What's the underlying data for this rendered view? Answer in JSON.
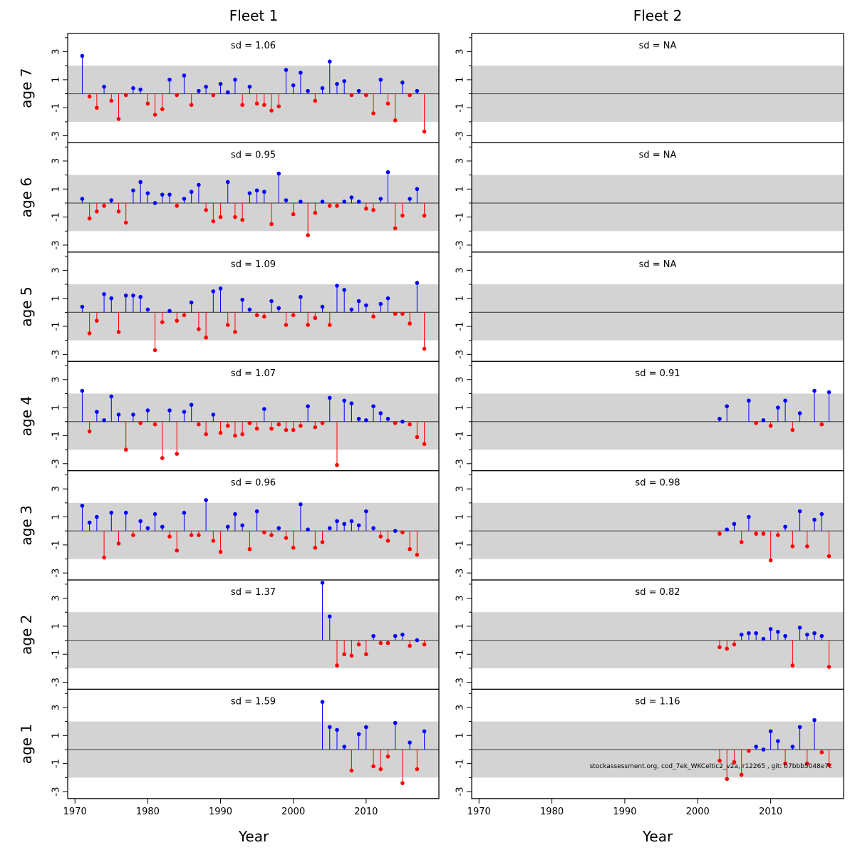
{
  "chart_data": {
    "type": "lollipop-panel",
    "columns": [
      "Fleet 1",
      "Fleet 2"
    ],
    "rows": [
      "age 7",
      "age 6",
      "age 5",
      "age 4",
      "age 3",
      "age 2",
      "age 1"
    ],
    "xlabel": "Year",
    "xlim": [
      1969,
      2020
    ],
    "xticks": [
      1970,
      1980,
      1990,
      2000,
      2010
    ],
    "ylim": [
      -3.5,
      4.3
    ],
    "yticks": [
      3,
      1,
      -1,
      -3
    ],
    "band": [
      -2,
      2
    ],
    "colors": {
      "positive": "#0000ff",
      "negative": "#ff0000",
      "band": "#d3d3d3",
      "zero_line": "#555555"
    },
    "footer": "stockassessment.org, cod_7ek_WKCeltic2_v2a, r12265 , git: b7bbb5048e7c",
    "panels": [
      {
        "fleet": "Fleet 1",
        "age": "age 7",
        "sd": "sd = 1.06",
        "start": 1971,
        "values": [
          2.7,
          -0.2,
          -1.0,
          0.5,
          -0.5,
          -1.8,
          -0.1,
          0.4,
          0.3,
          -0.7,
          -1.5,
          -1.1,
          1.0,
          -0.1,
          1.3,
          -0.8,
          0.2,
          0.5,
          -0.1,
          0.7,
          0.1,
          1.0,
          -0.8,
          0.5,
          -0.7,
          -0.8,
          -1.2,
          -0.9,
          1.7,
          0.6,
          1.5,
          0.2,
          -0.5,
          0.4,
          2.3,
          0.7,
          0.9,
          -0.1,
          0.2,
          -0.1,
          -1.4,
          1.0,
          -0.7,
          -1.9,
          0.8,
          -0.1,
          0.2,
          -2.7
        ]
      },
      {
        "fleet": "Fleet 2",
        "age": "age 7",
        "sd": "sd = NA",
        "start": 2003,
        "values": []
      },
      {
        "fleet": "Fleet 1",
        "age": "age 6",
        "sd": "sd = 0.95",
        "start": 1971,
        "values": [
          0.3,
          -1.1,
          -0.6,
          -0.2,
          0.2,
          -0.6,
          -1.4,
          0.9,
          1.5,
          0.7,
          0.0,
          0.6,
          0.6,
          -0.2,
          0.3,
          0.8,
          1.3,
          -0.5,
          -1.3,
          -1.0,
          1.5,
          -1.0,
          -1.2,
          0.7,
          0.9,
          0.8,
          -1.5,
          2.1,
          0.2,
          -0.8,
          0.1,
          -2.3,
          -0.7,
          0.1,
          -0.2,
          -0.2,
          0.1,
          0.4,
          0.1,
          -0.4,
          -0.5,
          0.3,
          2.2,
          -1.8,
          -0.9,
          0.3,
          1.0,
          -0.9
        ]
      },
      {
        "fleet": "Fleet 2",
        "age": "age 6",
        "sd": "sd = NA",
        "start": 2003,
        "values": []
      },
      {
        "fleet": "Fleet 1",
        "age": "age 5",
        "sd": "sd = 1.09",
        "start": 1971,
        "values": [
          0.4,
          -1.5,
          -0.6,
          1.3,
          1.0,
          -1.4,
          1.2,
          1.2,
          1.1,
          0.2,
          -2.7,
          -0.7,
          0.1,
          -0.6,
          -0.2,
          0.7,
          -1.2,
          -1.8,
          1.5,
          1.7,
          -0.9,
          -1.4,
          0.9,
          0.2,
          -0.2,
          -0.3,
          0.8,
          0.3,
          -0.9,
          -0.2,
          1.1,
          -0.9,
          -0.4,
          0.4,
          -0.9,
          1.9,
          1.6,
          0.2,
          0.8,
          0.5,
          -0.3,
          0.6,
          1.0,
          -0.1,
          -0.1,
          -0.8,
          2.1,
          -2.6
        ]
      },
      {
        "fleet": "Fleet 2",
        "age": "age 5",
        "sd": "sd = NA",
        "start": 2003,
        "values": []
      },
      {
        "fleet": "Fleet 1",
        "age": "age 4",
        "sd": "sd = 1.07",
        "start": 1971,
        "values": [
          2.2,
          -0.7,
          0.7,
          0.1,
          1.8,
          0.5,
          -2.0,
          0.5,
          -0.1,
          0.8,
          -0.2,
          -2.6,
          0.8,
          -2.3,
          0.7,
          1.2,
          -0.2,
          -0.9,
          0.5,
          -0.8,
          -0.3,
          -1.0,
          -0.9,
          -0.1,
          -0.5,
          0.9,
          -0.5,
          -0.2,
          -0.6,
          -0.6,
          -0.3,
          1.1,
          -0.4,
          -0.1,
          1.7,
          -3.1,
          1.5,
          1.3,
          0.2,
          0.1,
          1.1,
          0.6,
          0.2,
          -0.1,
          0.0,
          -0.2,
          -1.1,
          -1.6
        ]
      },
      {
        "fleet": "Fleet 2",
        "age": "age 4",
        "sd": "sd = 0.91",
        "start": 2003,
        "values": [
          0.2,
          1.1,
          null,
          null,
          1.5,
          -0.1,
          0.1,
          -0.3,
          1.0,
          1.5,
          -0.6,
          0.6,
          null,
          2.2,
          -0.2,
          2.1
        ]
      },
      {
        "fleet": "Fleet 1",
        "age": "age 3",
        "sd": "sd = 0.96",
        "start": 1971,
        "values": [
          1.8,
          0.6,
          1.0,
          -1.9,
          1.3,
          -0.9,
          1.3,
          -0.3,
          0.7,
          0.2,
          1.2,
          0.3,
          -0.4,
          -1.4,
          1.3,
          -0.3,
          -0.3,
          2.2,
          -0.7,
          -1.5,
          0.3,
          1.2,
          0.4,
          -1.3,
          1.4,
          -0.1,
          -0.3,
          0.2,
          -0.5,
          -1.2,
          1.9,
          0.1,
          -1.2,
          -0.8,
          0.2,
          0.7,
          0.5,
          0.7,
          0.4,
          1.4,
          0.2,
          -0.4,
          -0.7,
          0.0,
          -0.1,
          -1.3,
          -1.7
        ]
      },
      {
        "fleet": "Fleet 2",
        "age": "age 3",
        "sd": "sd = 0.98",
        "start": 2003,
        "values": [
          -0.2,
          0.1,
          0.5,
          -0.8,
          1.0,
          -0.2,
          -0.2,
          -2.1,
          -0.3,
          0.3,
          -1.1,
          1.4,
          -1.1,
          0.8,
          1.2,
          -1.8
        ]
      },
      {
        "fleet": "Fleet 1",
        "age": "age 2",
        "sd": "sd = 1.37",
        "start": 2004,
        "values": [
          4.1,
          1.7,
          -1.8,
          -1.0,
          -1.1,
          -0.3,
          -1.0,
          0.3,
          -0.2,
          -0.2,
          0.3,
          0.4,
          -0.4,
          0.0,
          -0.3
        ]
      },
      {
        "fleet": "Fleet 2",
        "age": "age 2",
        "sd": "sd = 0.82",
        "start": 2003,
        "values": [
          -0.5,
          -0.6,
          -0.3,
          0.4,
          0.5,
          0.5,
          0.1,
          0.8,
          0.6,
          0.3,
          -1.8,
          0.9,
          0.4,
          0.5,
          0.3,
          -1.9
        ]
      },
      {
        "fleet": "Fleet 1",
        "age": "age 1",
        "sd": "sd = 1.59",
        "start": 2004,
        "values": [
          3.4,
          1.6,
          1.4,
          0.2,
          -1.5,
          1.1,
          1.6,
          -1.2,
          -1.4,
          -0.5,
          1.9,
          -2.4,
          0.5,
          -1.4,
          1.3
        ]
      },
      {
        "fleet": "Fleet 2",
        "age": "age 1",
        "sd": "sd = 1.16",
        "start": 2003,
        "values": [
          -0.8,
          -2.1,
          -0.9,
          -1.8,
          -0.1,
          0.2,
          0.0,
          1.3,
          0.6,
          -1.0,
          0.2,
          1.6,
          -1.0,
          2.1,
          -0.2,
          -1.1
        ]
      }
    ]
  }
}
